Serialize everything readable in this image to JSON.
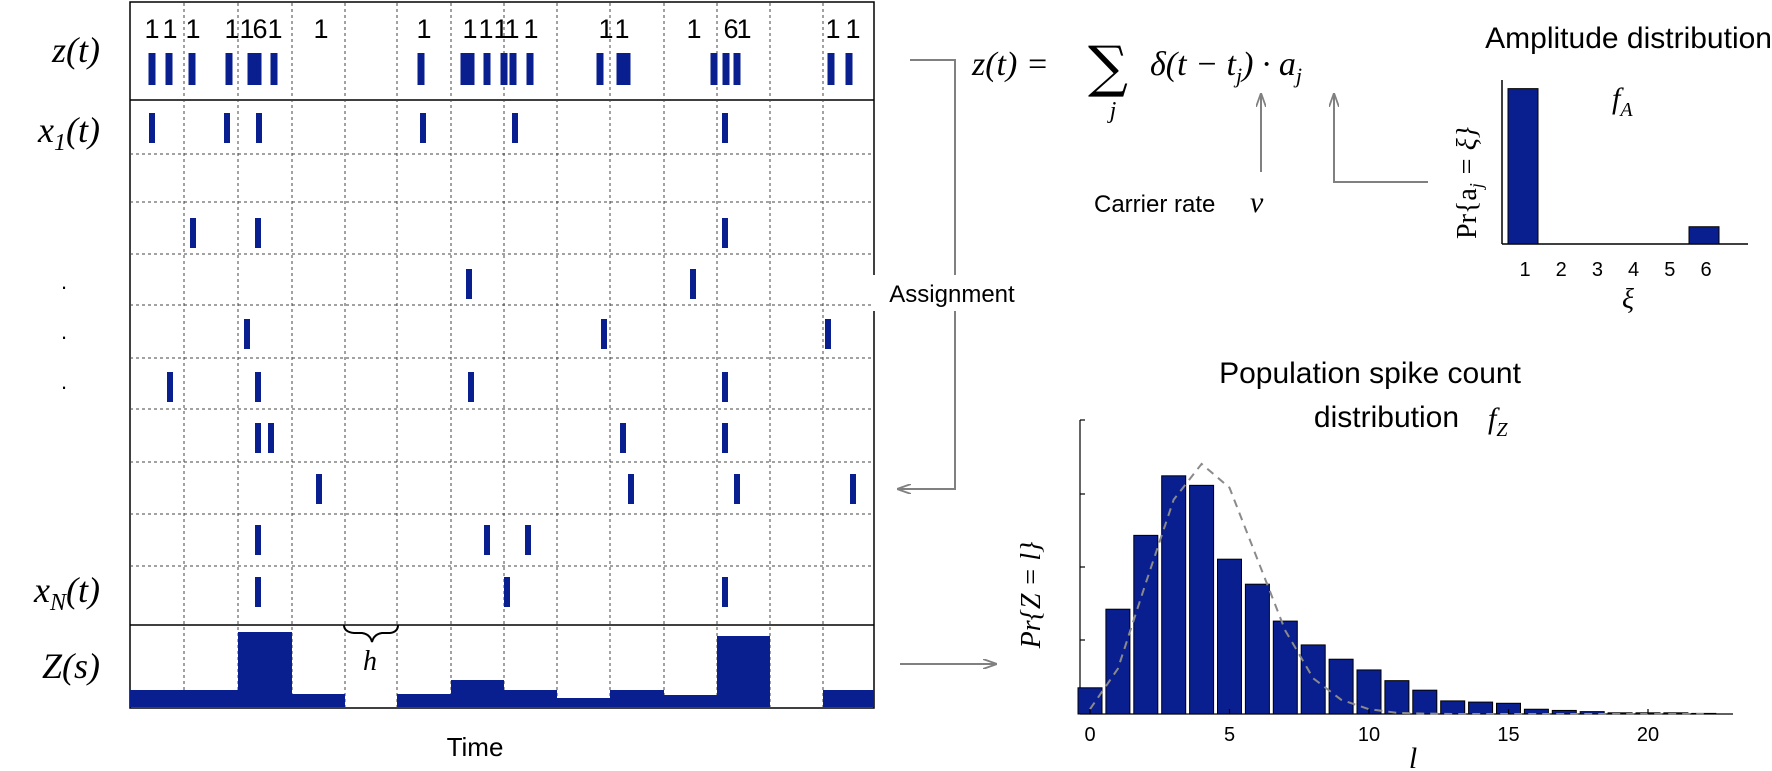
{
  "colors": {
    "spike": "#0a1f8f",
    "grid": "#444444",
    "arrow": "#808080",
    "gauss": "#8a8a8a",
    "axis": "#000000"
  },
  "raster": {
    "labels": {
      "z": "z(t)",
      "x1": "x",
      "x1_sub": "1",
      "x1_arg": "(t)",
      "xN": "x",
      "xN_sub": "N",
      "xN_arg": "(t)",
      "Z": "Z(s)",
      "dots": [
        "·",
        "·",
        "·"
      ],
      "h": "h",
      "time": "Time"
    },
    "amplitudes": [
      "1",
      "1",
      "1",
      "1",
      "1",
      "6",
      "1",
      "1",
      "1",
      "1",
      "1",
      "1",
      "1",
      "1",
      "1",
      "1",
      "1",
      "6",
      "1",
      "1",
      "1"
    ],
    "assignment_label": "Assignment"
  },
  "equation": {
    "lhs": "z(t) =",
    "sum": "∑",
    "sum_index": "j",
    "body": "δ(t − t",
    "body_sub": "j",
    "body_close": ") · a",
    "a_sub": "j",
    "carrier_label": "Carrier rate",
    "carrier_symbol": "ν"
  },
  "amplitude_chart": {
    "title": "Amplitude distribution",
    "func": "f",
    "func_sub": "A",
    "ylabel": "Pr{a",
    "ylabel_sub": "j",
    "ylabel_end": " = ξ}",
    "xlabel": "ξ",
    "chart_data": {
      "type": "bar",
      "categories": [
        "1",
        "2",
        "3",
        "4",
        "5",
        "6"
      ],
      "values": [
        0.9,
        0,
        0,
        0,
        0,
        0.1
      ],
      "title": "Amplitude distribution",
      "xlabel": "ξ",
      "ylabel": "Pr{a_j = ξ}"
    }
  },
  "count_chart": {
    "title_line1": "Population spike count",
    "title_line2": "distribution",
    "func": "f",
    "func_sub": "Z",
    "ylabel": "Pr{Z = l}",
    "xlabel": "l",
    "chart_data": {
      "type": "bar",
      "x": [
        0,
        1,
        2,
        3,
        4,
        5,
        6,
        7,
        8,
        9,
        10,
        11,
        12,
        13,
        14,
        15,
        16,
        17,
        18,
        19,
        20,
        21,
        22
      ],
      "values": [
        0.022,
        0.088,
        0.15,
        0.2,
        0.192,
        0.13,
        0.109,
        0.078,
        0.058,
        0.046,
        0.037,
        0.028,
        0.02,
        0.011,
        0.01,
        0.009,
        0.004,
        0.003,
        0.002,
        0.001,
        0.001,
        0.001,
        0.0005
      ],
      "gaussian_fit": [
        0.004,
        0.038,
        0.11,
        0.18,
        0.21,
        0.19,
        0.13,
        0.07,
        0.03,
        0.012,
        0.004,
        0.001,
        0.0003,
        0,
        0,
        0,
        0,
        0,
        0,
        0,
        0,
        0,
        0
      ],
      "xticks": [
        0,
        5,
        10,
        15,
        20
      ],
      "xlim": [
        -0.5,
        23
      ],
      "ylim": [
        0,
        0.22
      ],
      "title": "Population spike count distribution",
      "xlabel": "l",
      "ylabel": "Pr{Z = l}"
    }
  }
}
